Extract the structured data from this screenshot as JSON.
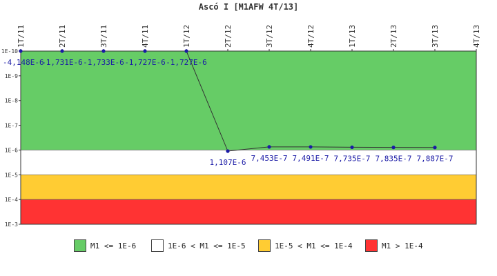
{
  "chart_data": {
    "type": "line",
    "title": "Ascó I [M1AFW 4T/13]",
    "categories": [
      "1T/11",
      "2T/11",
      "3T/11",
      "4T/11",
      "1T/12",
      "2T/12",
      "3T/12",
      "4T/12",
      "1T/13",
      "2T/13",
      "3T/13",
      "4T/13"
    ],
    "series": [
      {
        "values": [
          -4.148e-06,
          -1.731e-06,
          -1.733e-06,
          -1.727e-06,
          -1.727e-06,
          1.107e-06,
          7.453e-07,
          7.491e-07,
          7.735e-07,
          7.835e-07,
          7.887e-07,
          null
        ],
        "labels": [
          "-4,148E-6",
          "-1,731E-6",
          "-1,733E-6",
          "-1,727E-6",
          "-1,727E-6",
          "1,107E-6",
          "7,453E-7",
          "7,491E-7",
          "7,735E-7",
          "7,835E-7",
          "7,887E-7",
          ""
        ],
        "color": "#1a1aa6"
      }
    ],
    "y_axis": {
      "scale": "log",
      "reversed": true,
      "range": [
        1e-10,
        0.001
      ],
      "note": "non-positive values are drawn at the 1E-10 end of the axis",
      "ticks": [
        {
          "value": 1e-10,
          "label": "1E-10"
        },
        {
          "value": 1e-09,
          "label": "1E-9"
        },
        {
          "value": 1e-08,
          "label": "1E-8"
        },
        {
          "value": 1e-07,
          "label": "1E-7"
        },
        {
          "value": 1e-06,
          "label": "1E-6"
        },
        {
          "value": 1e-05,
          "label": "1E-5"
        },
        {
          "value": 0.0001,
          "label": "1E-4"
        },
        {
          "value": 0.001,
          "label": "1E-3"
        }
      ]
    },
    "bands": [
      {
        "from": 1e-10,
        "to": 1e-06,
        "color": "#66cc66",
        "label": "M1 <= 1E-6"
      },
      {
        "from": 1e-06,
        "to": 1e-05,
        "color": "#ffffff",
        "label": "1E-6 < M1 <= 1E-5"
      },
      {
        "from": 1e-05,
        "to": 0.0001,
        "color": "#ffcc33",
        "label": "1E-5 < M1 <= 1E-4"
      },
      {
        "from": 0.0001,
        "to": 0.001,
        "color": "#ff3333",
        "label": "M1 > 1E-4"
      }
    ],
    "legend_position": "bottom",
    "grid": false
  }
}
